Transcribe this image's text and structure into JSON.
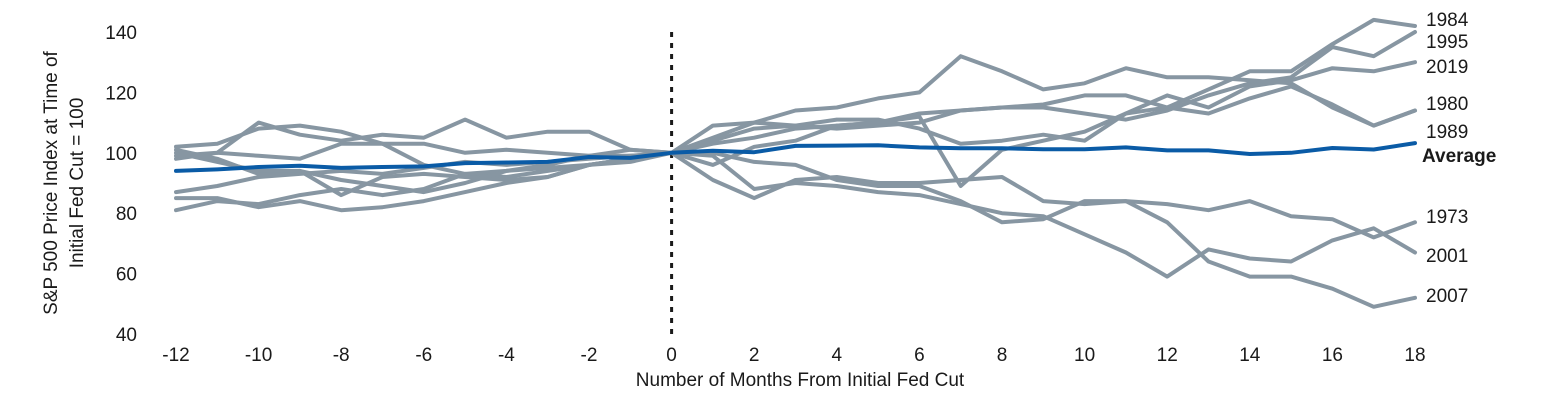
{
  "chart_data": {
    "type": "line",
    "title": "",
    "xlabel": "Number of Months From Initial Fed Cut",
    "ylabel": "S&P 500 Price Index at Time of Initial Fed Cut = 100",
    "ylabel_lines": [
      "S&P 500 Price Index at Time of",
      "Initial Fed Cut = 100"
    ],
    "xlim": [
      -12,
      18
    ],
    "ylim": [
      40,
      140
    ],
    "x_ticks": [
      -12,
      -10,
      -8,
      -6,
      -4,
      -2,
      0,
      2,
      4,
      6,
      8,
      10,
      12,
      14,
      16,
      18
    ],
    "y_ticks": [
      40,
      60,
      80,
      100,
      120,
      140
    ],
    "cut_marker_x": 0,
    "grid": false,
    "x": [
      -12,
      -11,
      -10,
      -9,
      -8,
      -7,
      -6,
      -5,
      -4,
      -3,
      -2,
      -1,
      0,
      1,
      2,
      3,
      4,
      5,
      6,
      7,
      8,
      9,
      10,
      11,
      12,
      13,
      14,
      15,
      16,
      17,
      18
    ],
    "series": [
      {
        "name": "1984",
        "color": "#8796a2",
        "values": [
          102,
          103,
          108,
          109,
          107,
          103,
          103,
          100,
          101,
          100,
          99,
          99,
          100,
          105,
          110,
          109,
          108,
          109,
          110,
          114,
          115,
          116,
          119,
          119,
          115,
          121,
          127,
          127,
          136,
          144,
          142
        ]
      },
      {
        "name": "1995",
        "color": "#8796a2",
        "values": [
          87,
          89,
          92,
          93,
          94,
          93,
          95,
          97,
          96,
          97,
          98,
          99,
          100,
          103,
          105,
          108,
          109,
          110,
          113,
          114,
          115,
          115,
          113,
          111,
          114,
          119,
          123,
          125,
          135,
          132,
          140
        ]
      },
      {
        "name": "2019",
        "color": "#8796a2",
        "values": [
          98,
          100,
          99,
          98,
          103,
          103,
          96,
          93,
          92,
          94,
          96,
          98,
          100,
          104,
          108,
          109,
          111,
          111,
          108,
          103,
          104,
          106,
          104,
          113,
          119,
          115,
          122,
          124,
          128,
          127,
          130
        ]
      },
      {
        "name": "1980",
        "color": "#8796a2",
        "values": [
          85,
          85,
          82,
          84,
          81,
          82,
          84,
          87,
          90,
          92,
          96,
          98,
          100,
          96,
          102,
          104,
          109,
          110,
          112,
          89,
          101,
          104,
          107,
          113,
          115,
          113,
          118,
          122,
          116,
          109,
          114
        ]
      },
      {
        "name": "1989",
        "color": "#8796a2",
        "values": [
          81,
          84,
          83,
          86,
          88,
          86,
          88,
          93,
          94,
          96,
          99,
          101,
          100,
          109,
          110,
          114,
          115,
          118,
          120,
          132,
          127,
          121,
          123,
          128,
          125,
          125,
          124,
          123,
          115,
          109,
          114
        ]
      },
      {
        "name": "1973",
        "color": "#8796a2",
        "values": [
          99,
          100,
          110,
          106,
          104,
          106,
          105,
          111,
          105,
          107,
          107,
          101,
          100,
          91,
          85,
          91,
          92,
          90,
          90,
          91,
          92,
          84,
          83,
          84,
          83,
          81,
          84,
          79,
          78,
          72,
          77
        ]
      },
      {
        "name": "2001",
        "color": "#8796a2",
        "values": [
          101,
          98,
          93,
          94,
          86,
          92,
          93,
          92,
          91,
          92,
          96,
          98,
          100,
          99,
          88,
          90,
          89,
          87,
          86,
          83,
          80,
          79,
          73,
          67,
          59,
          68,
          65,
          64,
          71,
          75,
          67
        ]
      },
      {
        "name": "2007",
        "color": "#8796a2",
        "values": [
          100,
          97,
          94,
          94,
          91,
          89,
          87,
          90,
          94,
          95,
          96,
          97,
          100,
          100,
          97,
          96,
          91,
          89,
          89,
          84,
          77,
          78,
          84,
          84,
          77,
          64,
          59,
          59,
          55,
          49,
          52
        ]
      },
      {
        "name": "Average",
        "color": "#0a5ba6",
        "values": [
          94,
          94.5,
          95.3,
          95.7,
          95,
          95.3,
          95.5,
          96.6,
          96.8,
          97,
          98.6,
          98.3,
          100,
          100.7,
          100.2,
          102.3,
          102.4,
          102.5,
          101.8,
          101.5,
          101.5,
          101.2,
          101.2,
          101.8,
          100.8,
          100.8,
          99.6,
          100,
          101.6,
          101.1,
          103.2
        ]
      }
    ]
  }
}
